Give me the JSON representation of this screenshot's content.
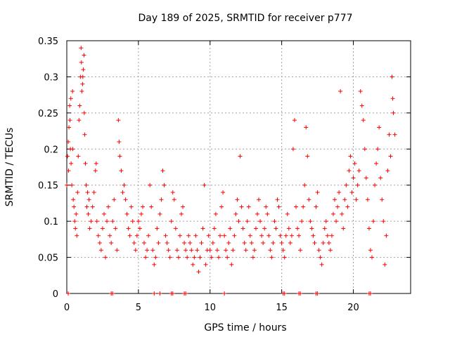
{
  "chart_data": {
    "type": "scatter",
    "title": "Day 189 of 2025, SRMTID for receiver p777",
    "xlabel": "GPS time / hours",
    "ylabel": "SRMTID / TECUs",
    "xlim": [
      0,
      24
    ],
    "ylim": [
      0,
      0.35
    ],
    "xticks": [
      0,
      5,
      10,
      15,
      20
    ],
    "yticks": [
      0,
      0.05,
      0.1,
      0.15,
      0.2,
      0.25,
      0.3,
      0.35
    ],
    "ytick_labels": [
      "0",
      "0.05",
      "0.1",
      "0.15",
      "0.2",
      "0.25",
      "0.3",
      "0.35"
    ],
    "grid": true,
    "marker": "+",
    "color": "#ff0000",
    "series": [
      {
        "name": "SRMTID",
        "points": [
          [
            0.0,
            0.15
          ],
          [
            0.05,
            0.19
          ],
          [
            0.1,
            0.21
          ],
          [
            0.12,
            0.17
          ],
          [
            0.15,
            0.23
          ],
          [
            0.2,
            0.26
          ],
          [
            0.22,
            0.24
          ],
          [
            0.25,
            0.2
          ],
          [
            0.28,
            0.27
          ],
          [
            0.3,
            0.18
          ],
          [
            0.35,
            0.15
          ],
          [
            0.4,
            0.28
          ],
          [
            0.42,
            0.2
          ],
          [
            0.45,
            0.13
          ],
          [
            0.5,
            0.12
          ],
          [
            0.55,
            0.1
          ],
          [
            0.6,
            0.09
          ],
          [
            0.65,
            0.11
          ],
          [
            0.7,
            0.08
          ],
          [
            0.75,
            0.14
          ],
          [
            0.8,
            0.19
          ],
          [
            0.85,
            0.24
          ],
          [
            0.9,
            0.26
          ],
          [
            0.95,
            0.3
          ],
          [
            1.0,
            0.34
          ],
          [
            1.02,
            0.32
          ],
          [
            1.05,
            0.28
          ],
          [
            1.1,
            0.29
          ],
          [
            1.12,
            0.3
          ],
          [
            1.15,
            0.31
          ],
          [
            1.2,
            0.33
          ],
          [
            1.22,
            0.25
          ],
          [
            1.25,
            0.22
          ],
          [
            1.3,
            0.18
          ],
          [
            1.35,
            0.15
          ],
          [
            1.4,
            0.12
          ],
          [
            1.45,
            0.14
          ],
          [
            1.5,
            0.11
          ],
          [
            1.55,
            0.13
          ],
          [
            1.6,
            0.09
          ],
          [
            1.7,
            0.1
          ],
          [
            1.8,
            0.12
          ],
          [
            1.9,
            0.14
          ],
          [
            2.0,
            0.17
          ],
          [
            2.05,
            0.18
          ],
          [
            2.1,
            0.1
          ],
          [
            2.2,
            0.08
          ],
          [
            2.3,
            0.07
          ],
          [
            2.4,
            0.06
          ],
          [
            2.5,
            0.09
          ],
          [
            2.6,
            0.11
          ],
          [
            2.7,
            0.05
          ],
          [
            2.8,
            0.1
          ],
          [
            2.9,
            0.12
          ],
          [
            3.0,
            0.08
          ],
          [
            3.1,
            0.07
          ],
          [
            3.2,
            0.1
          ],
          [
            3.3,
            0.13
          ],
          [
            3.4,
            0.09
          ],
          [
            3.5,
            0.06
          ],
          [
            3.6,
            0.24
          ],
          [
            3.65,
            0.21
          ],
          [
            3.7,
            0.19
          ],
          [
            3.8,
            0.17
          ],
          [
            3.9,
            0.14
          ],
          [
            4.0,
            0.15
          ],
          [
            4.1,
            0.13
          ],
          [
            4.2,
            0.11
          ],
          [
            4.3,
            0.09
          ],
          [
            4.4,
            0.08
          ],
          [
            4.5,
            0.12
          ],
          [
            4.6,
            0.1
          ],
          [
            4.7,
            0.07
          ],
          [
            4.8,
            0.06
          ],
          [
            4.9,
            0.08
          ],
          [
            5.0,
            0.1
          ],
          [
            5.1,
            0.09
          ],
          [
            5.2,
            0.11
          ],
          [
            5.3,
            0.12
          ],
          [
            5.4,
            0.07
          ],
          [
            5.5,
            0.05
          ],
          [
            5.6,
            0.06
          ],
          [
            5.7,
            0.08
          ],
          [
            5.8,
            0.15
          ],
          [
            5.9,
            0.12
          ],
          [
            6.0,
            0.06
          ],
          [
            6.1,
            0.04
          ],
          [
            6.2,
            0.05
          ],
          [
            6.3,
            0.09
          ],
          [
            6.4,
            0.07
          ],
          [
            6.5,
            0.11
          ],
          [
            6.6,
            0.13
          ],
          [
            6.7,
            0.17
          ],
          [
            6.8,
            0.15
          ],
          [
            6.9,
            0.08
          ],
          [
            7.0,
            0.07
          ],
          [
            7.1,
            0.06
          ],
          [
            7.2,
            0.05
          ],
          [
            7.3,
            0.1
          ],
          [
            7.4,
            0.14
          ],
          [
            7.5,
            0.13
          ],
          [
            7.6,
            0.09
          ],
          [
            7.7,
            0.06
          ],
          [
            7.8,
            0.05
          ],
          [
            7.9,
            0.08
          ],
          [
            8.0,
            0.11
          ],
          [
            8.1,
            0.12
          ],
          [
            8.2,
            0.07
          ],
          [
            8.3,
            0.06
          ],
          [
            8.4,
            0.05
          ],
          [
            8.5,
            0.08
          ],
          [
            8.6,
            0.07
          ],
          [
            8.7,
            0.06
          ],
          [
            8.8,
            0.04
          ],
          [
            8.9,
            0.05
          ],
          [
            9.0,
            0.08
          ],
          [
            9.1,
            0.06
          ],
          [
            9.2,
            0.03
          ],
          [
            9.3,
            0.05
          ],
          [
            9.4,
            0.07
          ],
          [
            9.5,
            0.09
          ],
          [
            9.6,
            0.15
          ],
          [
            9.7,
            0.04
          ],
          [
            9.8,
            0.06
          ],
          [
            9.9,
            0.08
          ],
          [
            10.0,
            0.06
          ],
          [
            10.1,
            0.05
          ],
          [
            10.2,
            0.07
          ],
          [
            10.3,
            0.09
          ],
          [
            10.4,
            0.11
          ],
          [
            10.5,
            0.06
          ],
          [
            10.6,
            0.05
          ],
          [
            10.7,
            0.08
          ],
          [
            10.8,
            0.12
          ],
          [
            10.9,
            0.14
          ],
          [
            11.0,
            0.08
          ],
          [
            11.1,
            0.06
          ],
          [
            11.2,
            0.05
          ],
          [
            11.3,
            0.07
          ],
          [
            11.4,
            0.09
          ],
          [
            11.5,
            0.04
          ],
          [
            11.6,
            0.06
          ],
          [
            11.7,
            0.08
          ],
          [
            11.8,
            0.11
          ],
          [
            11.9,
            0.13
          ],
          [
            12.0,
            0.1
          ],
          [
            12.1,
            0.19
          ],
          [
            12.2,
            0.12
          ],
          [
            12.3,
            0.09
          ],
          [
            12.4,
            0.07
          ],
          [
            12.5,
            0.06
          ],
          [
            12.6,
            0.1
          ],
          [
            12.7,
            0.12
          ],
          [
            12.8,
            0.08
          ],
          [
            12.9,
            0.07
          ],
          [
            13.0,
            0.05
          ],
          [
            13.1,
            0.06
          ],
          [
            13.2,
            0.09
          ],
          [
            13.3,
            0.11
          ],
          [
            13.4,
            0.13
          ],
          [
            13.5,
            0.1
          ],
          [
            13.6,
            0.08
          ],
          [
            13.7,
            0.07
          ],
          [
            13.8,
            0.09
          ],
          [
            13.9,
            0.12
          ],
          [
            14.0,
            0.11
          ],
          [
            14.1,
            0.08
          ],
          [
            14.2,
            0.06
          ],
          [
            14.3,
            0.05
          ],
          [
            14.4,
            0.07
          ],
          [
            14.5,
            0.1
          ],
          [
            14.6,
            0.09
          ],
          [
            14.7,
            0.13
          ],
          [
            14.8,
            0.12
          ],
          [
            14.9,
            0.08
          ],
          [
            15.0,
            0.07
          ],
          [
            15.1,
            0.06
          ],
          [
            15.2,
            0.05
          ],
          [
            15.3,
            0.08
          ],
          [
            15.4,
            0.11
          ],
          [
            15.5,
            0.09
          ],
          [
            15.6,
            0.07
          ],
          [
            15.7,
            0.08
          ],
          [
            15.8,
            0.2
          ],
          [
            15.9,
            0.24
          ],
          [
            16.0,
            0.12
          ],
          [
            16.1,
            0.09
          ],
          [
            16.2,
            0.08
          ],
          [
            16.3,
            0.06
          ],
          [
            16.4,
            0.1
          ],
          [
            16.5,
            0.12
          ],
          [
            16.6,
            0.15
          ],
          [
            16.7,
            0.23
          ],
          [
            16.8,
            0.19
          ],
          [
            16.9,
            0.13
          ],
          [
            17.0,
            0.1
          ],
          [
            17.1,
            0.09
          ],
          [
            17.2,
            0.08
          ],
          [
            17.3,
            0.07
          ],
          [
            17.4,
            0.12
          ],
          [
            17.5,
            0.14
          ],
          [
            17.6,
            0.06
          ],
          [
            17.7,
            0.05
          ],
          [
            17.8,
            0.04
          ],
          [
            17.9,
            0.07
          ],
          [
            18.0,
            0.09
          ],
          [
            18.1,
            0.1
          ],
          [
            18.2,
            0.08
          ],
          [
            18.3,
            0.07
          ],
          [
            18.4,
            0.06
          ],
          [
            18.5,
            0.08
          ],
          [
            18.6,
            0.11
          ],
          [
            18.7,
            0.13
          ],
          [
            18.8,
            0.1
          ],
          [
            18.9,
            0.12
          ],
          [
            19.0,
            0.14
          ],
          [
            19.1,
            0.28
          ],
          [
            19.2,
            0.11
          ],
          [
            19.3,
            0.09
          ],
          [
            19.4,
            0.13
          ],
          [
            19.5,
            0.15
          ],
          [
            19.6,
            0.12
          ],
          [
            19.7,
            0.17
          ],
          [
            19.8,
            0.19
          ],
          [
            19.9,
            0.14
          ],
          [
            20.0,
            0.16
          ],
          [
            20.1,
            0.18
          ],
          [
            20.2,
            0.13
          ],
          [
            20.3,
            0.15
          ],
          [
            20.4,
            0.17
          ],
          [
            20.5,
            0.28
          ],
          [
            20.6,
            0.26
          ],
          [
            20.7,
            0.24
          ],
          [
            20.8,
            0.2
          ],
          [
            20.9,
            0.16
          ],
          [
            21.0,
            0.13
          ],
          [
            21.1,
            0.09
          ],
          [
            21.2,
            0.06
          ],
          [
            21.3,
            0.05
          ],
          [
            21.4,
            0.1
          ],
          [
            21.5,
            0.15
          ],
          [
            21.6,
            0.18
          ],
          [
            21.7,
            0.2
          ],
          [
            21.8,
            0.23
          ],
          [
            21.9,
            0.16
          ],
          [
            22.0,
            0.13
          ],
          [
            22.1,
            0.1
          ],
          [
            22.2,
            0.04
          ],
          [
            22.3,
            0.08
          ],
          [
            22.4,
            0.17
          ],
          [
            22.5,
            0.22
          ],
          [
            22.6,
            0.19
          ],
          [
            22.7,
            0.3
          ],
          [
            22.75,
            0.27
          ],
          [
            22.8,
            0.25
          ],
          [
            22.9,
            0.22
          ]
        ]
      }
    ],
    "zero_points_x": [
      0.1,
      3.1,
      3.2,
      6.1,
      6.5,
      7.3,
      7.4,
      8.2,
      8.3,
      11.0,
      15.1,
      15.2,
      16.2,
      16.3,
      17.4,
      17.5,
      21.1,
      21.2
    ]
  }
}
